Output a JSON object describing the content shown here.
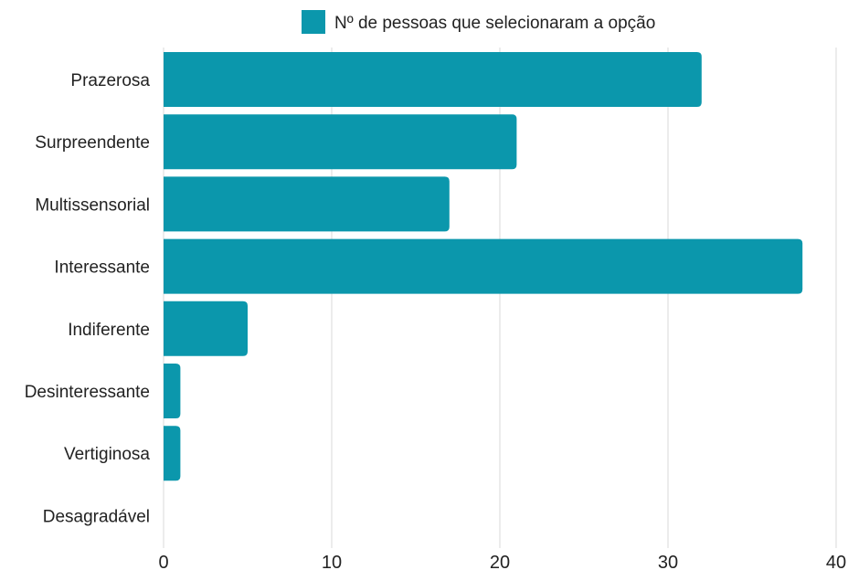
{
  "chart_data": {
    "type": "bar",
    "orientation": "horizontal",
    "title": "",
    "xlabel": "",
    "ylabel": "",
    "categories": [
      "Prazerosa",
      "Surpreendente",
      "Multissensorial",
      "Interessante",
      "Indiferente",
      "Desinteressante",
      "Vertiginosa",
      "Desagradável"
    ],
    "series": [
      {
        "name": "Nº de pessoas que selecionaram a opção",
        "values": [
          32,
          21,
          17,
          38,
          5,
          1,
          1,
          0
        ],
        "color": "#0b97ac"
      }
    ],
    "xlim": [
      0,
      40
    ],
    "xticks": [
      "0",
      "10",
      "20",
      "30",
      "40"
    ],
    "grid": true,
    "legend_position": "top"
  }
}
